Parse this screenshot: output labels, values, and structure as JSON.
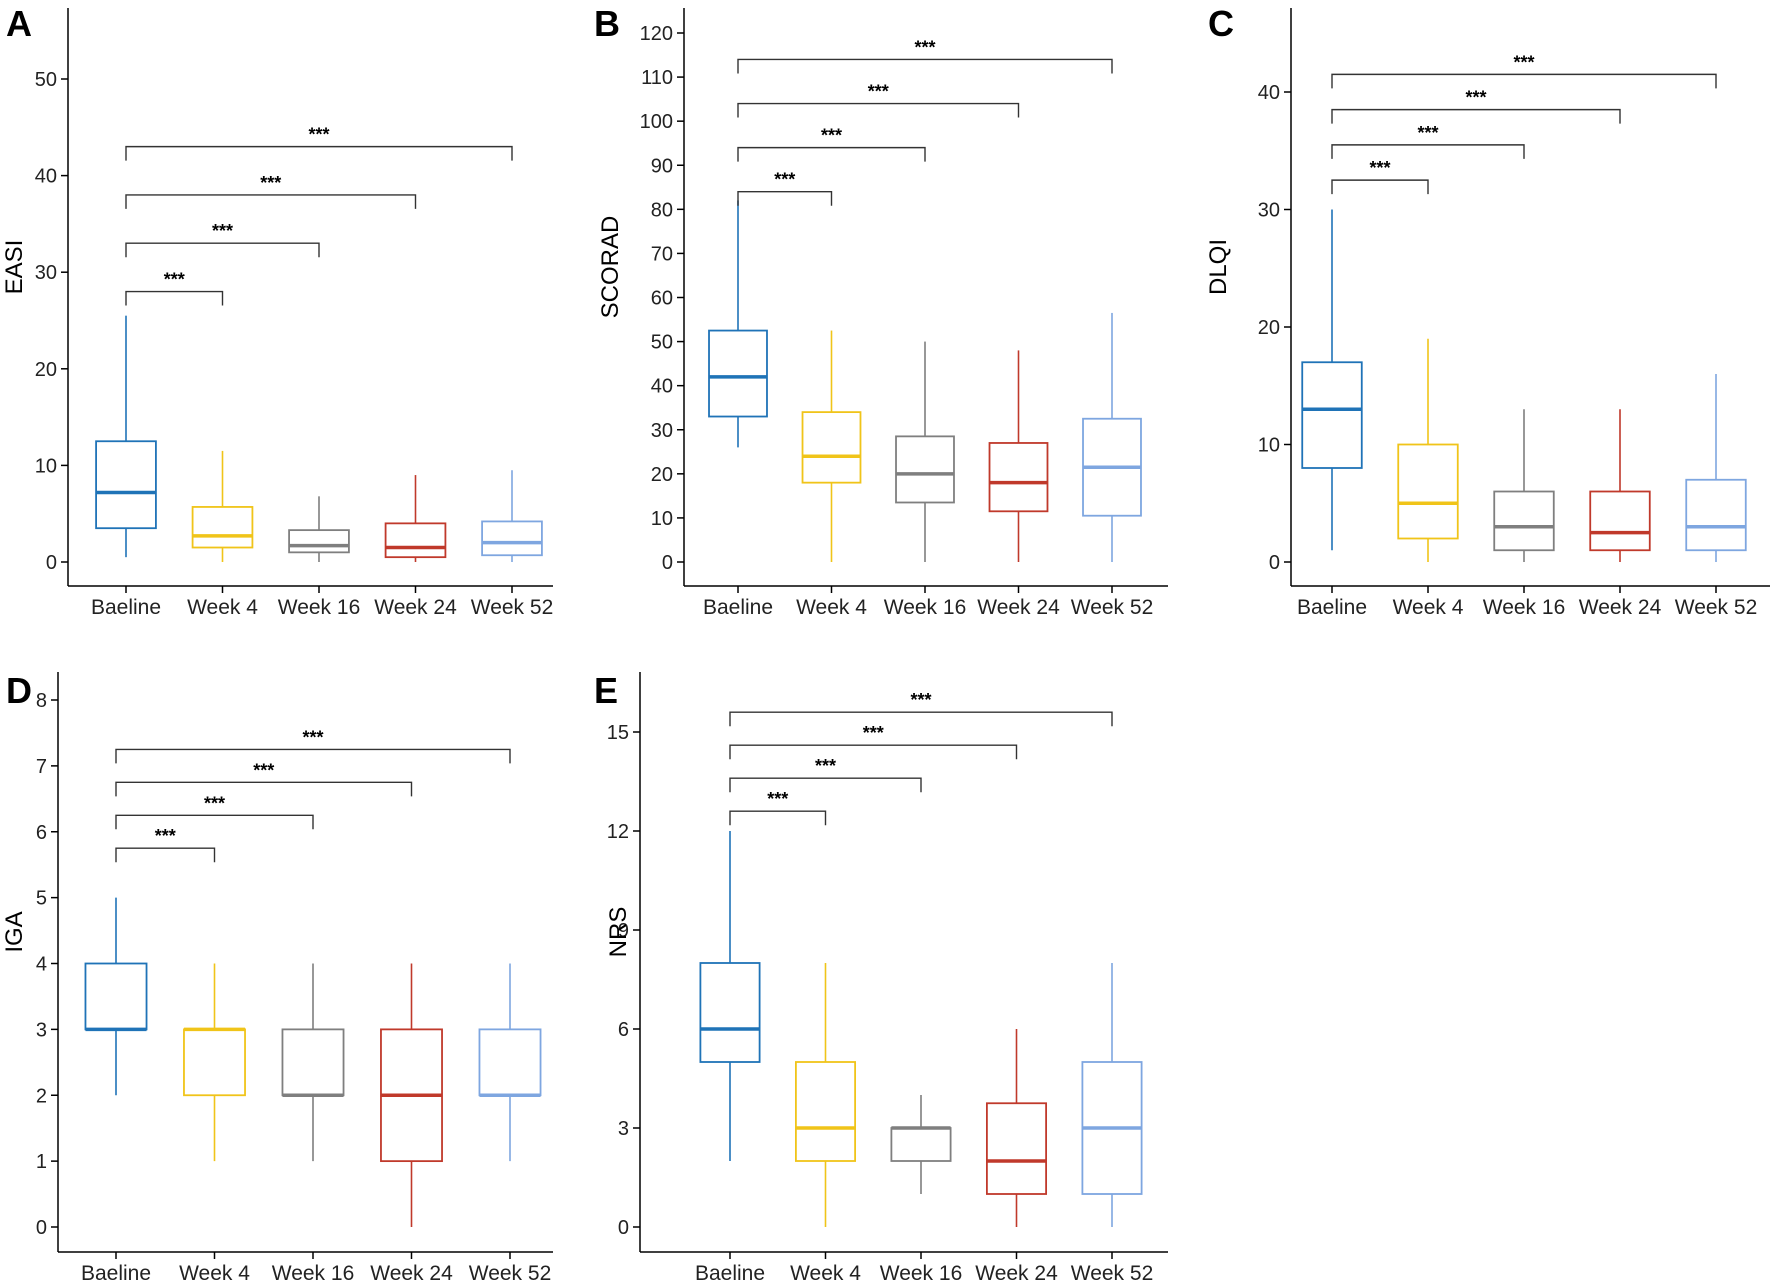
{
  "chart_data": [
    {
      "panel": "A",
      "type": "boxplot",
      "ylabel": "EASI",
      "ylim": [
        0,
        55
      ],
      "yticks": [
        0,
        10,
        20,
        30,
        40,
        50
      ],
      "categories": [
        "Baeline",
        "Week 4",
        "Week 16",
        "Week 24",
        "Week 52"
      ],
      "colors": [
        "#1f73b7",
        "#f0c419",
        "#7f7f7f",
        "#c0392b",
        "#7ea6e0"
      ],
      "boxes": [
        {
          "min": 0.5,
          "q1": 3.5,
          "median": 7.2,
          "q3": 12.5,
          "max": 25.5
        },
        {
          "min": 0,
          "q1": 1.5,
          "median": 2.7,
          "q3": 5.7,
          "max": 11.5
        },
        {
          "min": 0,
          "q1": 1.0,
          "median": 1.7,
          "q3": 3.3,
          "max": 6.8
        },
        {
          "min": 0,
          "q1": 0.5,
          "median": 1.5,
          "q3": 4.0,
          "max": 9.0
        },
        {
          "min": 0,
          "q1": 0.7,
          "median": 2.0,
          "q3": 4.2,
          "max": 9.5
        }
      ],
      "comparisons": [
        {
          "from": 0,
          "to": 1,
          "y": 28,
          "label": "***"
        },
        {
          "from": 0,
          "to": 2,
          "y": 33,
          "label": "***"
        },
        {
          "from": 0,
          "to": 3,
          "y": 38,
          "label": "***"
        },
        {
          "from": 0,
          "to": 4,
          "y": 43,
          "label": "***"
        }
      ]
    },
    {
      "panel": "B",
      "type": "boxplot",
      "ylabel": "SCORAD",
      "ylim": [
        0,
        120
      ],
      "yticks": [
        0,
        10,
        20,
        30,
        40,
        50,
        60,
        70,
        80,
        90,
        100,
        110,
        120
      ],
      "categories": [
        "Baeline",
        "Week 4",
        "Week 16",
        "Week 24",
        "Week 52"
      ],
      "colors": [
        "#1f73b7",
        "#f0c419",
        "#7f7f7f",
        "#c0392b",
        "#7ea6e0"
      ],
      "boxes": [
        {
          "min": 26,
          "q1": 33,
          "median": 42,
          "q3": 52.5,
          "max": 82
        },
        {
          "min": 0,
          "q1": 18,
          "median": 24,
          "q3": 34,
          "max": 52.5
        },
        {
          "min": 0,
          "q1": 13.5,
          "median": 20,
          "q3": 28.5,
          "max": 50
        },
        {
          "min": 0,
          "q1": 11.5,
          "median": 18,
          "q3": 27,
          "max": 48
        },
        {
          "min": 0,
          "q1": 10.5,
          "median": 21.5,
          "q3": 32.5,
          "max": 56.5
        }
      ],
      "comparisons": [
        {
          "from": 0,
          "to": 1,
          "y": 84,
          "label": "***"
        },
        {
          "from": 0,
          "to": 2,
          "y": 94,
          "label": "***"
        },
        {
          "from": 0,
          "to": 3,
          "y": 104,
          "label": "***"
        },
        {
          "from": 0,
          "to": 4,
          "y": 114,
          "label": "***"
        }
      ]
    },
    {
      "panel": "C",
      "type": "boxplot",
      "ylabel": "DLQI",
      "ylim": [
        0,
        45
      ],
      "yticks": [
        0,
        10,
        20,
        30,
        40
      ],
      "categories": [
        "Baeline",
        "Week 4",
        "Week 16",
        "Week 24",
        "Week 52"
      ],
      "colors": [
        "#1f73b7",
        "#f0c419",
        "#7f7f7f",
        "#c0392b",
        "#7ea6e0"
      ],
      "boxes": [
        {
          "min": 1,
          "q1": 8,
          "median": 13,
          "q3": 17,
          "max": 30
        },
        {
          "min": 0,
          "q1": 2,
          "median": 5,
          "q3": 10,
          "max": 19
        },
        {
          "min": 0,
          "q1": 1,
          "median": 3,
          "q3": 6,
          "max": 13
        },
        {
          "min": 0,
          "q1": 1,
          "median": 2.5,
          "q3": 6,
          "max": 13
        },
        {
          "min": 0,
          "q1": 1,
          "median": 3,
          "q3": 7,
          "max": 16
        }
      ],
      "comparisons": [
        {
          "from": 0,
          "to": 1,
          "y": 32.5,
          "label": "***"
        },
        {
          "from": 0,
          "to": 2,
          "y": 35.5,
          "label": "***"
        },
        {
          "from": 0,
          "to": 3,
          "y": 38.5,
          "label": "***"
        },
        {
          "from": 0,
          "to": 4,
          "y": 41.5,
          "label": "***"
        }
      ]
    },
    {
      "panel": "D",
      "type": "boxplot",
      "ylabel": "IGA",
      "ylim": [
        -0.4,
        8
      ],
      "yticks": [
        0,
        1,
        2,
        3,
        4,
        5,
        6,
        7,
        8
      ],
      "categories": [
        "Baeline",
        "Week 4",
        "Week 16",
        "Week 24",
        "Week 52"
      ],
      "colors": [
        "#1f73b7",
        "#f0c419",
        "#7f7f7f",
        "#c0392b",
        "#7ea6e0"
      ],
      "boxes": [
        {
          "min": 2,
          "q1": 3,
          "median": 3,
          "q3": 4,
          "max": 5
        },
        {
          "min": 1,
          "q1": 2,
          "median": 3,
          "q3": 3,
          "max": 4
        },
        {
          "min": 1,
          "q1": 2,
          "median": 2,
          "q3": 3,
          "max": 4
        },
        {
          "min": 0,
          "q1": 1,
          "median": 2,
          "q3": 3,
          "max": 4
        },
        {
          "min": 1,
          "q1": 2,
          "median": 2,
          "q3": 3,
          "max": 4
        }
      ],
      "comparisons": [
        {
          "from": 0,
          "to": 1,
          "y": 5.75,
          "label": "***"
        },
        {
          "from": 0,
          "to": 2,
          "y": 6.25,
          "label": "***"
        },
        {
          "from": 0,
          "to": 3,
          "y": 6.75,
          "label": "***"
        },
        {
          "from": 0,
          "to": 4,
          "y": 7.25,
          "label": "***"
        }
      ]
    },
    {
      "panel": "E",
      "type": "boxplot",
      "ylabel": "NRS",
      "ylim": [
        -0.7,
        16.8
      ],
      "yticks": [
        0,
        3,
        6,
        9,
        12,
        15
      ],
      "categories": [
        "Baeline",
        "Week 4",
        "Week 16",
        "Week 24",
        "Week 52"
      ],
      "colors": [
        "#1f73b7",
        "#f0c419",
        "#7f7f7f",
        "#c0392b",
        "#7ea6e0"
      ],
      "boxes": [
        {
          "min": 2,
          "q1": 5,
          "median": 6,
          "q3": 8,
          "max": 12
        },
        {
          "min": 0,
          "q1": 2,
          "median": 3,
          "q3": 5,
          "max": 8
        },
        {
          "min": 1,
          "q1": 2,
          "median": 3,
          "q3": 3,
          "max": 4
        },
        {
          "min": 0,
          "q1": 1,
          "median": 2,
          "q3": 3.75,
          "max": 6
        },
        {
          "min": 0,
          "q1": 1,
          "median": 3,
          "q3": 5,
          "max": 8
        }
      ],
      "comparisons": [
        {
          "from": 0,
          "to": 1,
          "y": 12.6,
          "label": "***"
        },
        {
          "from": 0,
          "to": 2,
          "y": 13.6,
          "label": "***"
        },
        {
          "from": 0,
          "to": 3,
          "y": 14.6,
          "label": "***"
        },
        {
          "from": 0,
          "to": 4,
          "y": 15.6,
          "label": "***"
        }
      ]
    }
  ]
}
